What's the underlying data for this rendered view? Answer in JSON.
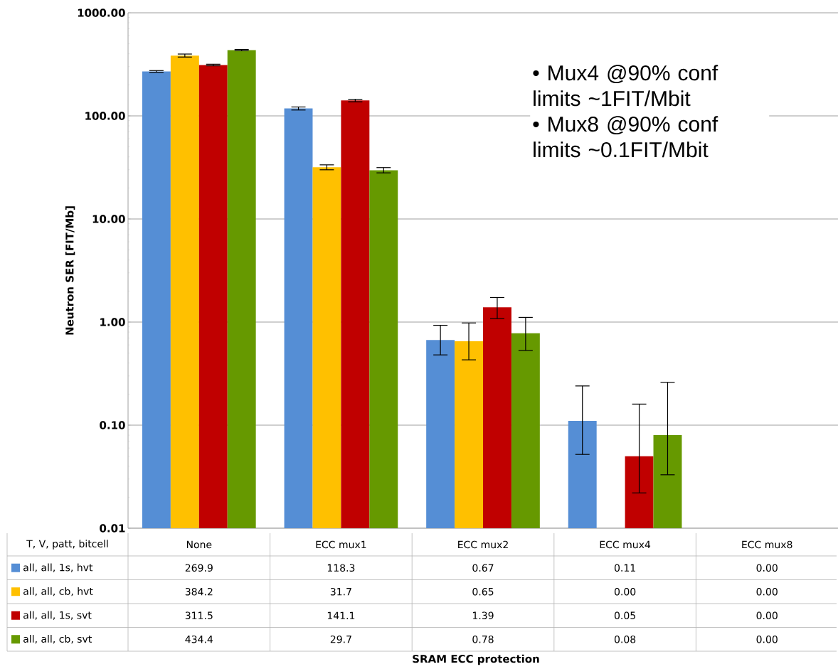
{
  "chart_data": {
    "type": "bar",
    "ylabel": "Neutron SER [FIT/Mb]",
    "legend_title": "T, V, patt, bitcell",
    "categories": [
      "None",
      "ECC mux1",
      "ECC mux2",
      "ECC mux4",
      "ECC mux8"
    ],
    "series": [
      {
        "name": "all, all, 1s, hvt",
        "color": "#558ed5",
        "values": [
          269.9,
          118.3,
          0.67,
          0.11,
          null
        ],
        "value_labels": [
          "269.9",
          "118.3",
          "0.67",
          "0.11",
          "0.00"
        ],
        "errors": [
          [
            265,
            275
          ],
          [
            114,
            122
          ],
          [
            0.48,
            0.93
          ],
          [
            0.052,
            0.24
          ],
          null
        ]
      },
      {
        "name": "all, all, cb, hvt",
        "color": "#ffc000",
        "values": [
          384.2,
          31.7,
          0.65,
          null,
          null
        ],
        "value_labels": [
          "384.2",
          "31.7",
          "0.65",
          "0.00",
          "0.00"
        ],
        "errors": [
          [
            372,
            398
          ],
          [
            30.0,
            33.5
          ],
          [
            0.43,
            0.98
          ],
          null,
          null
        ]
      },
      {
        "name": "all, all, 1s, svt",
        "color": "#c00000",
        "values": [
          311.5,
          141.1,
          1.39,
          0.05,
          null
        ],
        "value_labels": [
          "311.5",
          "141.1",
          "1.39",
          "0.05",
          "0.00"
        ],
        "errors": [
          [
            306,
            317
          ],
          [
            137,
            145
          ],
          [
            1.08,
            1.73
          ],
          [
            0.022,
            0.16
          ],
          null
        ]
      },
      {
        "name": "all, all, cb, svt",
        "color": "#669900",
        "values": [
          434.4,
          29.7,
          0.78,
          0.08,
          null
        ],
        "value_labels": [
          "434.4",
          "29.7",
          "0.78",
          "0.08",
          "0.00"
        ],
        "errors": [
          [
            428,
            441
          ],
          [
            28.0,
            31.5
          ],
          [
            0.53,
            1.11
          ],
          [
            0.033,
            0.26
          ],
          null
        ]
      }
    ],
    "log": "y",
    "ylim": [
      0.01,
      1000
    ],
    "yticks": [
      {
        "value": 0.01,
        "label": "0.01"
      },
      {
        "value": 0.1,
        "label": "0.10"
      },
      {
        "value": 1,
        "label": "1.00"
      },
      {
        "value": 10,
        "label": "10.00"
      },
      {
        "value": 100,
        "label": "100.00"
      },
      {
        "value": 1000,
        "label": "1000.00"
      }
    ],
    "grid": "y",
    "legend": "bottom",
    "annotations": [
      "• Mux4 @90% conf limits ~1FIT/Mbit",
      "• Mux8 @90% conf limits ~0.1FIT/Mbit",
      "SRAM ECC protection"
    ]
  }
}
